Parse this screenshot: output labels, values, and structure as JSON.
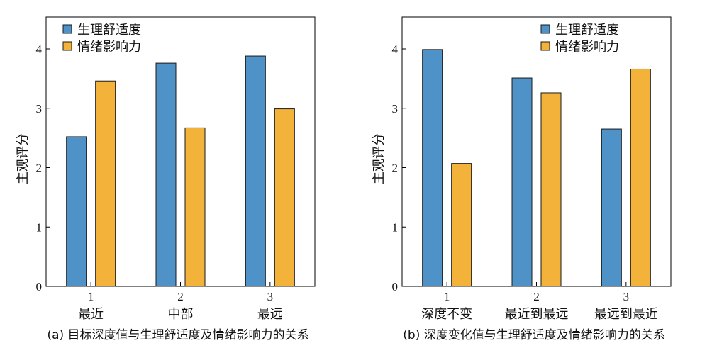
{
  "chart_data": [
    {
      "type": "bar",
      "caption": "(a) 目标深度值与生理舒适度及情绪影响力的关系",
      "ylabel": "主观评分",
      "ylim": [
        0,
        4
      ],
      "yticks": [
        "0",
        "1",
        "2",
        "3",
        "4"
      ],
      "categories": [
        "1",
        "2",
        "3"
      ],
      "category_labels": [
        "最近",
        "中部",
        "最远"
      ],
      "legend_position": "top-left",
      "series": [
        {
          "name": "生理舒适度",
          "color": "#4f92c8",
          "values": [
            2.52,
            3.76,
            3.88
          ]
        },
        {
          "name": "情绪影响力",
          "color": "#f3b33b",
          "values": [
            3.46,
            2.67,
            2.99
          ]
        }
      ]
    },
    {
      "type": "bar",
      "caption": "(b) 深度变化值与生理舒适度及情绪影响力的关系",
      "ylabel": "主观评分",
      "ylim": [
        0,
        4
      ],
      "yticks": [
        "0",
        "1",
        "2",
        "3",
        "4"
      ],
      "categories": [
        "1",
        "2",
        "3"
      ],
      "category_labels": [
        "深度不变",
        "最近到最远",
        "最远到最近"
      ],
      "legend_position": "top-right",
      "series": [
        {
          "name": "生理舒适度",
          "color": "#4f92c8",
          "values": [
            3.99,
            3.51,
            2.65
          ]
        },
        {
          "name": "情绪影响力",
          "color": "#f3b33b",
          "values": [
            2.07,
            3.26,
            3.66
          ]
        }
      ]
    }
  ]
}
